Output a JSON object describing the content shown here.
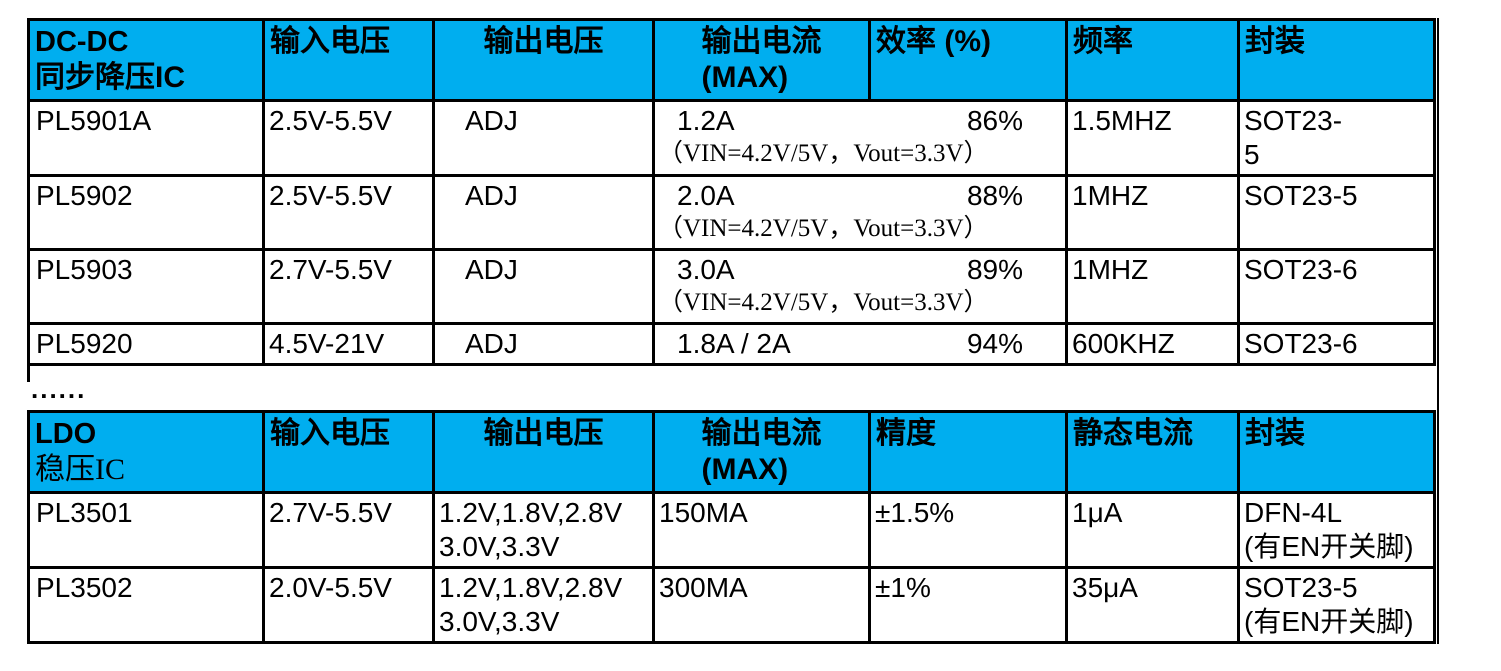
{
  "colors": {
    "header_bg": "#00AEEF",
    "border": "#000000",
    "text": "#000000"
  },
  "dcdc": {
    "header": {
      "title_line1": "DC-DC",
      "title_line2": "同步降压IC",
      "input_voltage": "输入电压",
      "output_voltage": "输出电压",
      "output_current_line1": "输出电流",
      "output_current_line2": "(MAX)",
      "efficiency": "效率 (%)",
      "frequency": "频率",
      "package": "封装"
    },
    "rows": [
      {
        "model": "PL5901A",
        "input_voltage": "2.5V-5.5V",
        "output_voltage": "ADJ",
        "output_current": "1.2A",
        "efficiency": "86%",
        "condition": "（VIN=4.2V/5V，Vout=3.3V）",
        "frequency": "1.5MHZ",
        "package": "SOT23-\n5"
      },
      {
        "model": "PL5902",
        "input_voltage": "2.5V-5.5V",
        "output_voltage": "ADJ",
        "output_current": "2.0A",
        "efficiency": "88%",
        "condition": "（VIN=4.2V/5V，Vout=3.3V）",
        "frequency": "1MHZ",
        "package": "SOT23-5"
      },
      {
        "model": "PL5903",
        "input_voltage": "2.7V-5.5V",
        "output_voltage": "ADJ",
        "output_current": "3.0A",
        "efficiency": "89%",
        "condition": "（VIN=4.2V/5V，Vout=3.3V）",
        "frequency": "1MHZ",
        "package": "SOT23-6"
      },
      {
        "model": "PL5920",
        "input_voltage": "4.5V-21V",
        "output_voltage": "ADJ",
        "output_current": "1.8A / 2A",
        "efficiency": "94%",
        "condition": "",
        "frequency": "600KHZ",
        "package": "SOT23-6"
      }
    ]
  },
  "separator": {
    "ellipsis": "......"
  },
  "ldo": {
    "header": {
      "title_line1": "LDO",
      "title_line2": "稳压IC",
      "input_voltage": "输入电压",
      "output_voltage": "输出电压",
      "output_current_line1": "输出电流",
      "output_current_line2": "(MAX)",
      "accuracy": "精度",
      "quiescent_current": "静态电流",
      "package": "封装"
    },
    "rows": [
      {
        "model": "PL3501",
        "input_voltage": "2.7V-5.5V",
        "output_voltage": "1.2V,1.8V,2.8V\n3.0V,3.3V",
        "output_current": "150MA",
        "accuracy": "±1.5%",
        "quiescent_current": "1μA",
        "package": "DFN-4L\n(有EN开关脚)"
      },
      {
        "model": "PL3502",
        "input_voltage": "2.0V-5.5V",
        "output_voltage": "1.2V,1.8V,2.8V\n3.0V,3.3V",
        "output_current": "300MA",
        "accuracy": "±1%",
        "quiescent_current": "35μA",
        "package": "SOT23-5\n(有EN开关脚)"
      }
    ]
  }
}
